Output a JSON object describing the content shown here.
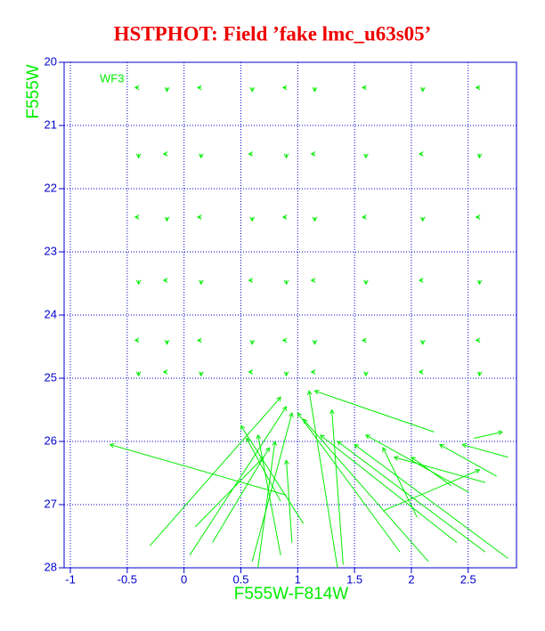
{
  "chart_data": {
    "type": "vector",
    "title": "HSTPHOT: Field ’fake lmc_u63s05’",
    "x_label": "F555W-F814W",
    "y_label": "F555W",
    "annotation": "WF3",
    "color": "#00ee00",
    "title_color": "#ee0000",
    "axis_color": "#0000cc",
    "grid": true,
    "y_inverted": true,
    "xlim": [
      -1.055,
      2.925
    ],
    "ylim": [
      20,
      28
    ],
    "xticks": [
      -1,
      -0.5,
      0,
      0.5,
      1,
      1.5,
      2,
      2.5
    ],
    "yticks": [
      20,
      21,
      22,
      23,
      24,
      25,
      26,
      27,
      28
    ],
    "vectors": {
      "x": [
        -0.4,
        -0.15,
        0.15,
        0.6,
        0.9,
        1.15,
        1.6,
        2.1,
        2.6,
        -0.4,
        -0.15,
        0.15,
        0.6,
        0.9,
        1.15,
        1.6,
        2.1,
        2.6,
        -0.4,
        -0.15,
        0.15,
        0.6,
        0.9,
        1.15,
        1.6,
        2.1,
        2.6,
        -0.4,
        -0.15,
        0.15,
        0.6,
        0.9,
        1.15,
        1.6,
        2.1,
        2.6,
        -0.4,
        -0.15,
        0.15,
        0.6,
        0.9,
        1.15,
        1.6,
        2.1,
        2.6,
        -0.4,
        -0.15,
        0.15,
        0.6,
        0.9,
        1.15,
        1.6,
        2.1,
        2.6,
        0.9,
        -0.3,
        0.05,
        1.35,
        0.6,
        1.05,
        0.85,
        1.9,
        2.15,
        2.4,
        2.65,
        2.85,
        2.5,
        2.05,
        1.75,
        2.75,
        2.85,
        2.55,
        2.2,
        0.1,
        0.25,
        0.95,
        0.85,
        1.4,
        0.65,
        2.35,
        2.65
      ],
      "y": [
        20.4,
        20.4,
        20.4,
        20.4,
        20.4,
        20.4,
        20.4,
        20.4,
        20.4,
        21.45,
        21.45,
        21.45,
        21.45,
        21.45,
        21.45,
        21.45,
        21.45,
        21.45,
        22.45,
        22.45,
        22.45,
        22.45,
        22.45,
        22.45,
        22.45,
        22.45,
        22.45,
        23.45,
        23.45,
        23.45,
        23.45,
        23.45,
        23.45,
        23.45,
        23.45,
        23.45,
        24.4,
        24.4,
        24.4,
        24.4,
        24.4,
        24.4,
        24.4,
        24.4,
        24.4,
        24.9,
        24.9,
        24.9,
        24.9,
        24.9,
        24.9,
        24.9,
        24.9,
        24.9,
        26.85,
        27.65,
        27.8,
        28.0,
        27.9,
        27.3,
        27.8,
        27.75,
        27.9,
        27.6,
        27.75,
        27.85,
        26.8,
        27.2,
        27.1,
        26.55,
        26.25,
        25.95,
        25.85,
        27.35,
        27.6,
        27.6,
        26.95,
        27.95,
        28.0,
        26.7,
        26.65
      ],
      "x_end": [
        -0.43,
        -0.15,
        0.12,
        0.6,
        0.87,
        1.15,
        1.57,
        2.1,
        2.57,
        -0.4,
        -0.18,
        0.15,
        0.57,
        0.9,
        1.12,
        1.6,
        2.07,
        2.6,
        -0.43,
        -0.15,
        0.12,
        0.6,
        0.87,
        1.15,
        1.57,
        2.1,
        2.57,
        -0.4,
        -0.18,
        0.15,
        0.57,
        0.9,
        1.12,
        1.6,
        2.07,
        2.6,
        -0.43,
        -0.15,
        0.12,
        0.6,
        0.87,
        1.15,
        1.57,
        2.1,
        2.57,
        -0.4,
        -0.18,
        0.15,
        0.57,
        0.9,
        1.12,
        1.6,
        2.07,
        2.6,
        -0.65,
        0.85,
        0.9,
        1.1,
        0.95,
        0.5,
        0.65,
        1.0,
        1.05,
        1.2,
        1.35,
        1.5,
        1.6,
        1.75,
        2.6,
        2.25,
        2.45,
        2.8,
        1.15,
        0.7,
        0.75,
        0.9,
        0.55,
        1.3,
        0.8,
        2.0,
        1.85
      ],
      "y_end": [
        20.4,
        20.46,
        20.4,
        20.46,
        20.4,
        20.46,
        20.4,
        20.46,
        20.4,
        21.51,
        21.45,
        21.51,
        21.45,
        21.51,
        21.45,
        21.51,
        21.45,
        21.51,
        22.45,
        22.51,
        22.45,
        22.51,
        22.45,
        22.51,
        22.45,
        22.51,
        22.45,
        23.51,
        23.45,
        23.51,
        23.45,
        23.51,
        23.45,
        23.51,
        23.45,
        23.51,
        24.4,
        24.46,
        24.4,
        24.46,
        24.4,
        24.46,
        24.4,
        24.46,
        24.4,
        24.96,
        24.9,
        24.96,
        24.9,
        24.96,
        24.9,
        24.96,
        24.9,
        24.96,
        26.05,
        25.3,
        25.45,
        25.2,
        25.55,
        25.75,
        25.9,
        25.55,
        25.65,
        25.9,
        26.0,
        26.05,
        25.9,
        26.1,
        26.45,
        26.05,
        26.05,
        25.85,
        25.2,
        26.25,
        26.1,
        26.3,
        25.95,
        25.5,
        26.0,
        26.25,
        26.25
      ]
    }
  }
}
